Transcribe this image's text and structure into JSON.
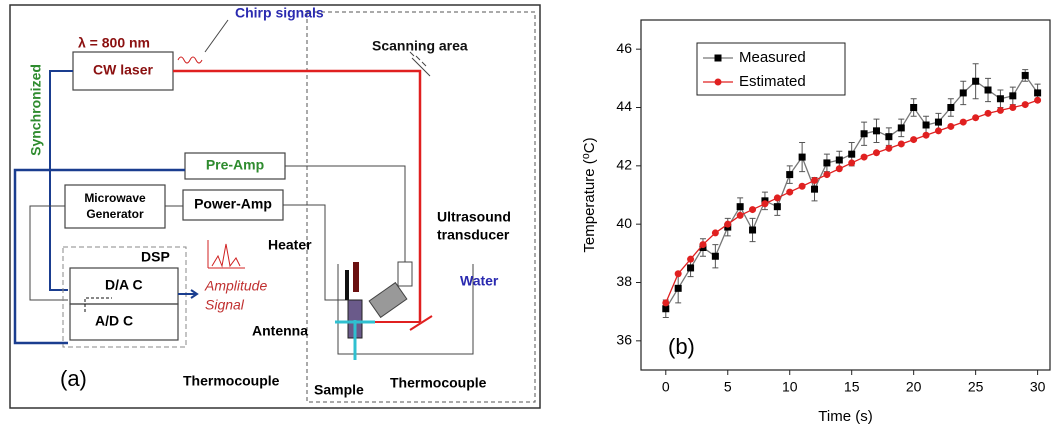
{
  "diagram": {
    "chirp": "Chirp signals",
    "wavelength": "λ = 800 nm",
    "laser": "CW laser",
    "scanning": "Scanning area",
    "sync": "Synchronized",
    "preamp": "Pre-Amp",
    "generator": [
      "Microwave",
      "Generator"
    ],
    "poweramp": "Power-Amp",
    "transducer": [
      "Ultrasound",
      "transducer"
    ],
    "heater": "Heater",
    "dsp": "DSP",
    "dac": "D/A C",
    "adc": "A/D C",
    "amplitude": [
      "Amplitude",
      "Signal"
    ],
    "water": "Water",
    "antenna": "Antenna",
    "thermo_left": "Thermocouple",
    "sample": "Sample",
    "thermo_right": "Thermocouple",
    "panel": "(a)"
  },
  "chart_data": {
    "type": "line",
    "panel": "(b)",
    "x_label": "Time (s)",
    "y_label": "Temperature (⁰C)",
    "x": [
      0,
      1,
      2,
      3,
      4,
      5,
      6,
      7,
      8,
      9,
      10,
      11,
      12,
      13,
      14,
      15,
      16,
      17,
      18,
      19,
      20,
      21,
      22,
      23,
      24,
      25,
      26,
      27,
      28,
      29,
      30
    ],
    "series": [
      {
        "name": "Measured",
        "color": "#000000",
        "line_color": "#777777",
        "marker": "square",
        "values": [
          37.1,
          37.8,
          38.5,
          39.2,
          38.9,
          39.9,
          40.6,
          39.8,
          40.8,
          40.6,
          41.7,
          42.3,
          41.2,
          42.1,
          42.2,
          42.4,
          43.1,
          43.2,
          43.0,
          43.3,
          44.0,
          43.4,
          43.5,
          44.0,
          44.5,
          44.9,
          44.6,
          44.3,
          44.4,
          45.1,
          44.5
        ],
        "errors": [
          0.3,
          0.5,
          0.3,
          0.3,
          0.4,
          0.3,
          0.3,
          0.4,
          0.3,
          0.3,
          0.3,
          0.5,
          0.4,
          0.3,
          0.3,
          0.4,
          0.4,
          0.4,
          0.3,
          0.3,
          0.3,
          0.3,
          0.3,
          0.3,
          0.4,
          0.6,
          0.4,
          0.3,
          0.3,
          0.2,
          0.3
        ]
      },
      {
        "name": "Estimated",
        "color": "#e02020",
        "line_color": "#e02020",
        "marker": "circle",
        "values": [
          37.3,
          38.3,
          38.8,
          39.3,
          39.7,
          40.0,
          40.3,
          40.5,
          40.7,
          40.9,
          41.1,
          41.3,
          41.5,
          41.7,
          41.9,
          42.1,
          42.3,
          42.45,
          42.6,
          42.75,
          42.9,
          43.05,
          43.2,
          43.35,
          43.5,
          43.65,
          43.8,
          43.9,
          44.0,
          44.1,
          44.25
        ]
      }
    ],
    "xlim": [
      -2,
      31
    ],
    "ylim": [
      35,
      47
    ],
    "xticks": [
      0,
      5,
      10,
      15,
      20,
      25,
      30
    ],
    "yticks": [
      36,
      38,
      40,
      42,
      44,
      46
    ],
    "legend": "upper left"
  }
}
